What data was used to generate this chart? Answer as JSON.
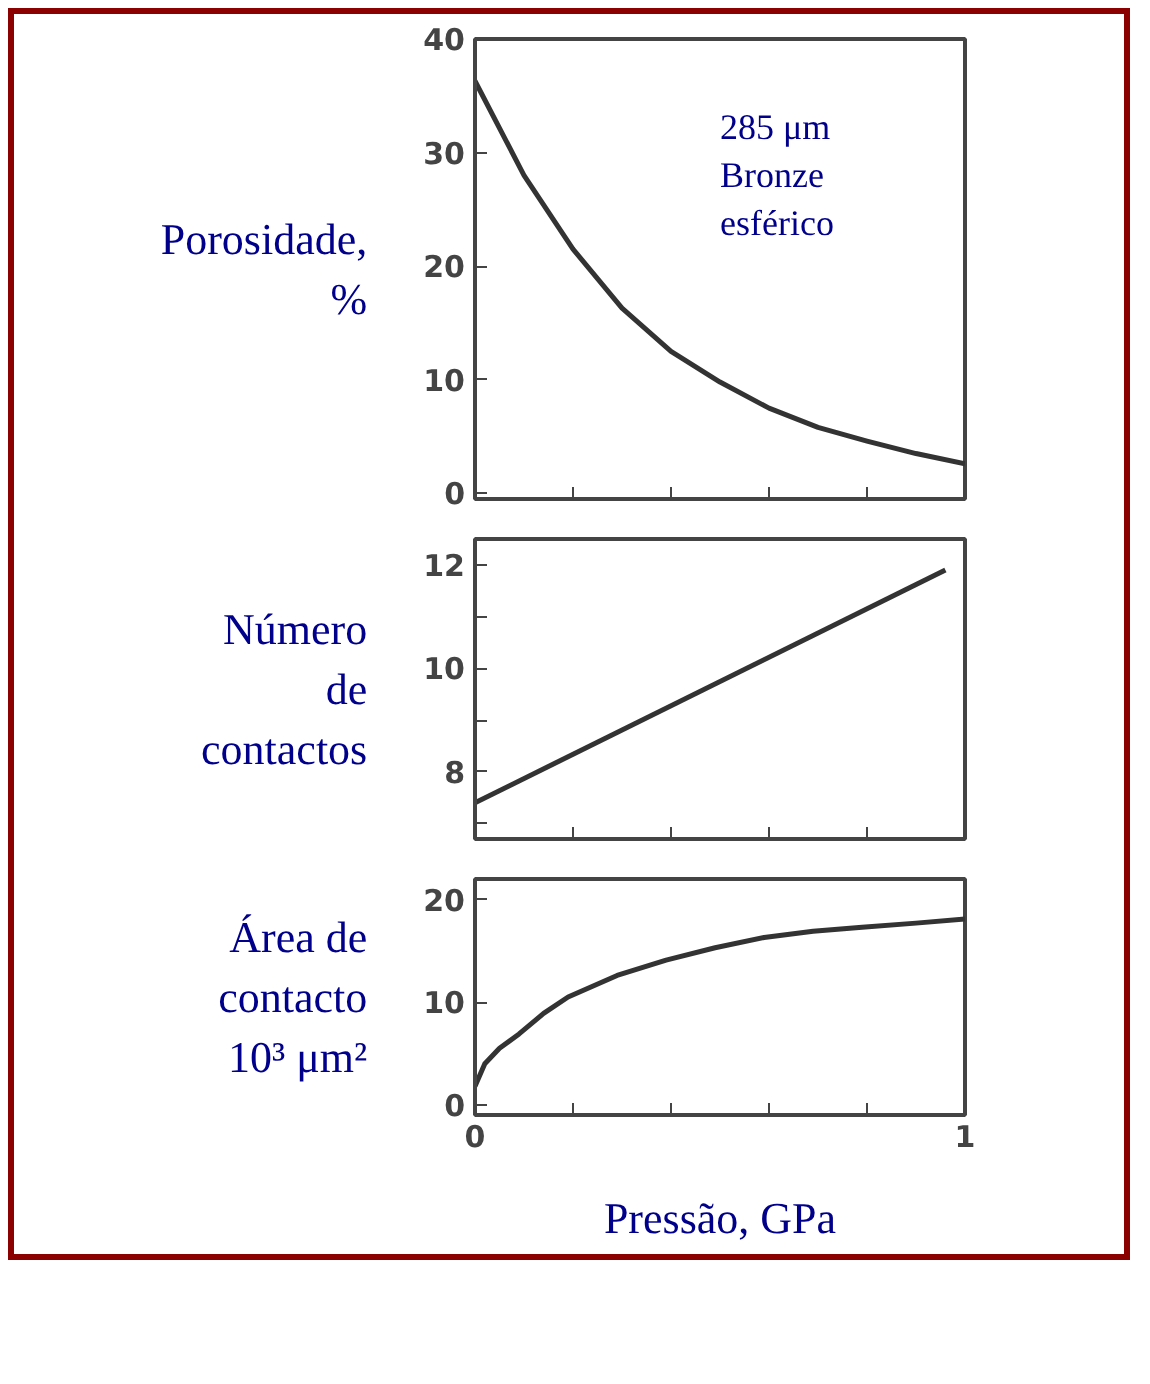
{
  "chart_data": [
    {
      "type": "line",
      "ylabel": "Porosidade,\n%",
      "annotations": [
        "285 μm\nBronze\n esférico"
      ],
      "x": [
        0,
        0.1,
        0.2,
        0.3,
        0.4,
        0.5,
        0.6,
        0.7,
        0.8,
        0.9,
        1
      ],
      "values": [
        36.3,
        28,
        21.5,
        16.3,
        12.5,
        9.8,
        7.5,
        5.8,
        4.6,
        3.5,
        2.6
      ],
      "color": "#333333",
      "xlim": [
        0,
        1
      ],
      "ylim": [
        -0.5,
        40
      ],
      "xticks": [
        {
          "value": 0.2,
          "label": null
        },
        {
          "value": 0.4,
          "label": null
        },
        {
          "value": 0.6,
          "label": null
        },
        {
          "value": 0.8,
          "label": null
        }
      ],
      "yticks": [
        0,
        10,
        20,
        30,
        40
      ],
      "tick_labels": "y",
      "grid": false
    },
    {
      "type": "line",
      "ylabel": "Número\nde\ncontactos",
      "x": [
        0,
        0.96
      ],
      "values": [
        7.4,
        11.9
      ],
      "color": "#333333",
      "xlim": [
        0,
        1
      ],
      "ylim": [
        6.7,
        12.5
      ],
      "xticks": [
        {
          "value": 0.2,
          "label": null
        },
        {
          "value": 0.4,
          "label": null
        },
        {
          "value": 0.6,
          "label": null
        },
        {
          "value": 0.8,
          "label": null
        }
      ],
      "yticks": [
        {
          "value": 7,
          "label": null
        },
        8,
        {
          "value": 9,
          "label": null
        },
        10,
        {
          "value": 11,
          "label": null
        },
        12
      ],
      "tick_labels": "y",
      "grid": false
    },
    {
      "type": "line",
      "ylabel": "Área de\ncontacto\n10³ μm²",
      "xlabel": "Pressão, GPa",
      "x": [
        0,
        0.02,
        0.05,
        0.09,
        0.14,
        0.19,
        0.29,
        0.39,
        0.49,
        0.59,
        0.69,
        0.79,
        0.9,
        1
      ],
      "values": [
        1.8,
        4,
        5.5,
        6.9,
        8.9,
        10.5,
        12.6,
        14.1,
        15.3,
        16.3,
        16.9,
        17.3,
        17.7,
        18.1
      ],
      "color": "#333333",
      "xlim": [
        0,
        1
      ],
      "ylim": [
        -1,
        22
      ],
      "xticks": [
        0,
        {
          "value": 0.2,
          "label": null
        },
        {
          "value": 0.4,
          "label": null
        },
        {
          "value": 0.6,
          "label": null
        },
        {
          "value": 0.8,
          "label": null
        },
        1
      ],
      "yticks": [
        0,
        10,
        20
      ],
      "grid": false
    }
  ]
}
